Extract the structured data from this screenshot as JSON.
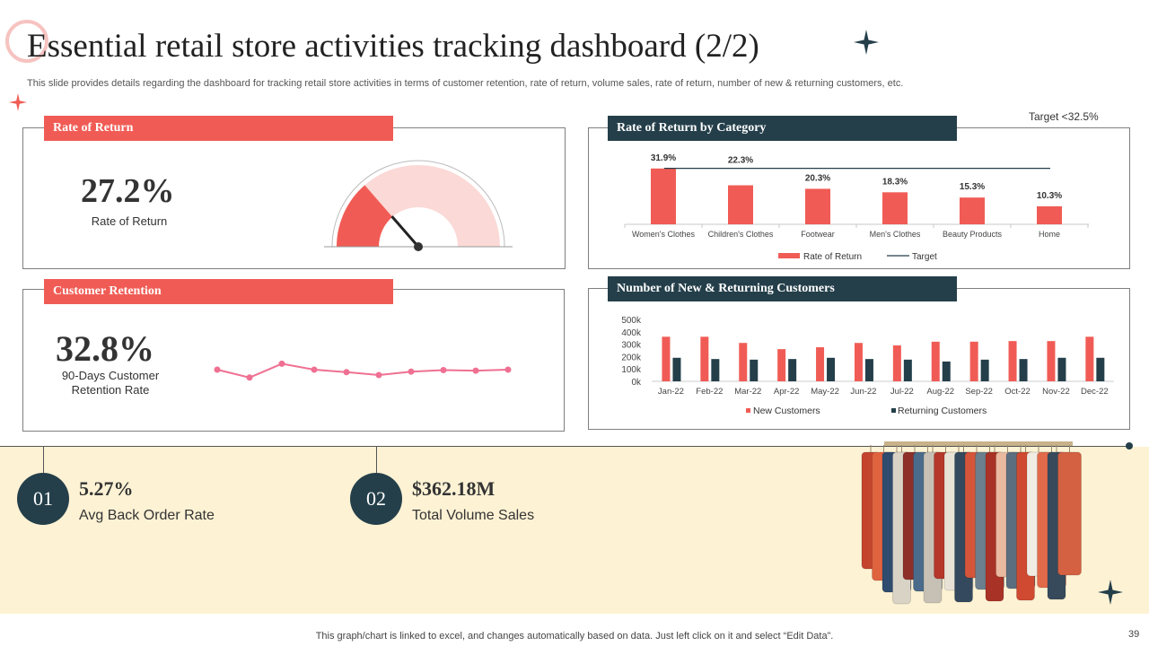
{
  "slide": {
    "title": "Essential retail store activities tracking dashboard (2/2)",
    "subtitle": "This slide provides details regarding the dashboard for tracking retail store activities in terms of customer retention, rate of return, volume sales, rate of return, number of new & returning customers, etc.",
    "footer": "This graph/chart is linked to excel,  and changes automatically based on data. Just left click on it and select “Edit Data”.",
    "page_number": "39"
  },
  "colors": {
    "accent": "#f05c55",
    "dark": "#243f4a",
    "pink_light": "#fbd9d6",
    "line_pink": "#ef7092",
    "band": "#fdf2d4"
  },
  "rate_of_return": {
    "title": "Rate of Return",
    "value": "27.2%",
    "label": "Rate of Return",
    "gauge_fraction": 0.272
  },
  "customer_retention": {
    "title": "Customer Retention",
    "value": "32.8%",
    "label_line1": "90-Days Customer",
    "label_line2": "Retention Rate"
  },
  "rate_by_category": {
    "title": "Rate of Return by Category",
    "target_note": "Target  <32.5%"
  },
  "customers_panel": {
    "title": "Number of New & Returning Customers"
  },
  "kpis": [
    {
      "number": "01",
      "value": "5.27%",
      "label": "Avg Back Order Rate"
    },
    {
      "number": "02",
      "value": "$362.18M",
      "label": "Total Volume Sales"
    }
  ],
  "chart_data": [
    {
      "type": "bar",
      "categories": [
        "Women's Clothes",
        "Children's Clothes",
        "Footwear",
        "Men's Clothes",
        "Beauty Products",
        "Home"
      ],
      "series": [
        {
          "name": "Rate of Return",
          "values": [
            31.9,
            22.3,
            20.3,
            18.3,
            15.3,
            10.3
          ]
        }
      ],
      "data_labels": [
        "31.9%",
        "22.3%",
        "20.3%",
        "18.3%",
        "15.3%",
        "10.3%"
      ],
      "target": {
        "name": "Target",
        "value": 32.5
      },
      "legend": "bottom"
    },
    {
      "type": "bar",
      "categories": [
        "Jan-22",
        "Feb-22",
        "Mar-22",
        "Apr-22",
        "May-22",
        "Jun-22",
        "Jul-22",
        "Aug-22",
        "Sep-22",
        "Oct-22",
        "Nov-22",
        "Dec-22"
      ],
      "series": [
        {
          "name": "New Customers",
          "values": [
            360,
            360,
            310,
            260,
            275,
            310,
            290,
            320,
            320,
            325,
            325,
            360
          ]
        },
        {
          "name": "Returning Customers",
          "values": [
            190,
            180,
            175,
            180,
            190,
            180,
            175,
            160,
            175,
            180,
            190,
            190
          ]
        }
      ],
      "y_ticks": [
        "0k",
        "100k",
        "200k",
        "300k",
        "400k",
        "500k"
      ],
      "ylim": [
        0,
        500
      ],
      "legend": "bottom"
    },
    {
      "type": "line",
      "series": [
        {
          "values": [
            32.8,
            31.2,
            34.0,
            32.8,
            32.3,
            31.7,
            32.4,
            32.7,
            32.6,
            32.8
          ]
        }
      ]
    }
  ]
}
